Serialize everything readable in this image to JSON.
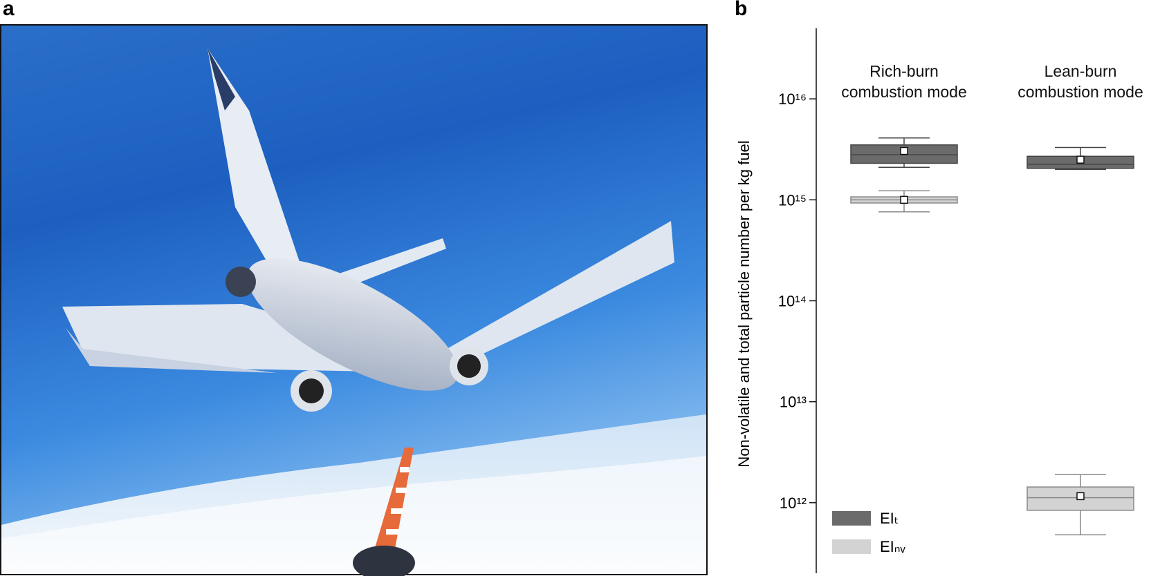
{
  "panel_labels": [
    "a",
    "b"
  ],
  "chart_data": {
    "type": "box",
    "y_label": "Non-volatile and total particle number per kg fuel",
    "categories": [
      "Rich-burn combustion mode",
      "Lean-burn combustion mode"
    ],
    "log_y": true,
    "ylim": [
      200000000000.0,
      5e+16
    ],
    "yticks": [
      {
        "value": 1000000000000.0,
        "label": "10¹²"
      },
      {
        "value": 10000000000000.0,
        "label": "10¹³"
      },
      {
        "value": 100000000000000.0,
        "label": "10¹⁴"
      },
      {
        "value": 1000000000000000.0,
        "label": "10¹⁵"
      },
      {
        "value": 1e+16,
        "label": "10¹⁶"
      }
    ],
    "legend": "lower left",
    "series": [
      {
        "name": "EIₜ",
        "color": "#6b6b6b",
        "boxes": [
          {
            "min": 2100000000000000.0,
            "q1": 2300000000000000.0,
            "median": 2800000000000000.0,
            "q3": 3500000000000000.0,
            "max": 4100000000000000.0,
            "mean": 3050000000000000.0
          },
          {
            "min": 2000000000000000.0,
            "q1": 2050000000000000.0,
            "median": 2250000000000000.0,
            "q3": 2700000000000000.0,
            "max": 3300000000000000.0,
            "mean": 2500000000000000.0
          }
        ]
      },
      {
        "name": "EIₙᵥ",
        "color": "#d3d3d3",
        "boxes": [
          {
            "min": 760000000000000.0,
            "q1": 930000000000000.0,
            "median": 1000000000000000.0,
            "q3": 1070000000000000.0,
            "max": 1230000000000000.0,
            "mean": 1000000000000000.0
          },
          {
            "min": 480000000000.0,
            "q1": 840000000000.0,
            "median": 1120000000000.0,
            "q3": 1430000000000.0,
            "max": 1900000000000.0,
            "mean": 1160000000000.0
          }
        ]
      }
    ]
  }
}
